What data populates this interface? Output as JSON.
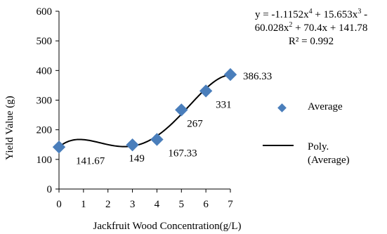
{
  "chart_data": {
    "type": "scatter",
    "xlabel": "Jackfruit Wood Concentration(g/L)",
    "ylabel": "Yield Value (g)",
    "xlim": [
      0,
      7
    ],
    "ylim": [
      0,
      600
    ],
    "xticks": [
      "0",
      "1",
      "2",
      "3",
      "4",
      "5",
      "6",
      "7"
    ],
    "yticks": [
      "0",
      "100",
      "200",
      "300",
      "400",
      "500",
      "600"
    ],
    "grid": false,
    "legend_position": "right",
    "series": [
      {
        "name": "Average",
        "type": "scatter",
        "color": "#4a7ebb",
        "marker": "diamond",
        "x": [
          0,
          3,
          4,
          5,
          6,
          7
        ],
        "y": [
          141.67,
          149,
          167.33,
          267,
          331,
          386.33
        ],
        "labels": [
          "141.67",
          "149",
          "167.33",
          "267",
          "331",
          "386.33"
        ]
      },
      {
        "name": "Poly. (Average)",
        "type": "line",
        "color": "#000000",
        "fit": "polynomial",
        "coefficients": [
          -1.1152,
          15.653,
          -60.028,
          70.4,
          141.78
        ]
      }
    ],
    "annotation": {
      "equation_line1": "y = -1.1152x",
      "equation_sup1": "4",
      "equation_part2": " + 15.653x",
      "equation_sup2": "3",
      "equation_part3": " -",
      "equation_line2a": "60.028x",
      "equation_sup3": "2",
      "equation_line2b": " + 70.4x + 141.78",
      "r_squared": "R² = 0.992"
    }
  },
  "legend": {
    "average_label": "Average",
    "poly_label": "Poly. (Average)"
  }
}
